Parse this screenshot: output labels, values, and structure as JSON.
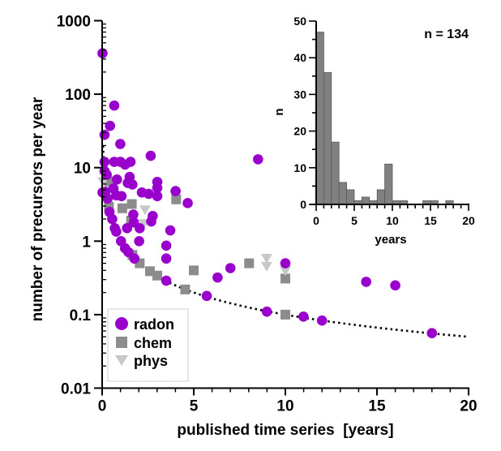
{
  "chart_data": [
    {
      "type": "scatter",
      "xlabel": "published time series  [years]",
      "ylabel": "number of precursors per year",
      "xlim": [
        0,
        20
      ],
      "ylim": [
        0.01,
        1000
      ],
      "yscale": "log",
      "xticks": [
        0,
        5,
        10,
        15,
        20
      ],
      "xtick_labels": [
        "0",
        "5",
        "10",
        "15",
        "20"
      ],
      "yticks": [
        0.01,
        0.1,
        1,
        10,
        100,
        1000
      ],
      "ytick_labels": [
        "0.01",
        "0.1",
        "1",
        "10",
        "100",
        "1000"
      ],
      "grid": false,
      "legend": {
        "placement": "bottom-left",
        "entries": [
          {
            "name": "radon",
            "marker": "circle",
            "color": "#9900cc"
          },
          {
            "name": "chem",
            "marker": "square",
            "color": "#8c8c8c"
          },
          {
            "name": "phys",
            "marker": "triangle-down",
            "color": "#c8c8c8"
          }
        ]
      },
      "curve": {
        "name": "1/x",
        "style": "dotted",
        "formula": "y = 1/x"
      },
      "series": [
        {
          "name": "radon",
          "points": [
            [
              0.02,
              360
            ],
            [
              0.66,
              70
            ],
            [
              0.43,
              37
            ],
            [
              0.13,
              28
            ],
            [
              0.99,
              21
            ],
            [
              0.13,
              12
            ],
            [
              0.66,
              12
            ],
            [
              1.0,
              12
            ],
            [
              1.25,
              11
            ],
            [
              1.55,
              12
            ],
            [
              2.65,
              14.5
            ],
            [
              0.13,
              9
            ],
            [
              0.25,
              8
            ],
            [
              0.81,
              6.9
            ],
            [
              1.5,
              7.5
            ],
            [
              1.4,
              6.2
            ],
            [
              1.65,
              5.9
            ],
            [
              0.02,
              4.6
            ],
            [
              0.18,
              4.7
            ],
            [
              0.62,
              5.2
            ],
            [
              0.77,
              4.2
            ],
            [
              1.06,
              4.1
            ],
            [
              2.17,
              4.6
            ],
            [
              2.54,
              4.4
            ],
            [
              3.01,
              6.4
            ],
            [
              3.01,
              5.3
            ],
            [
              3.01,
              4.1
            ],
            [
              4.01,
              4.8
            ],
            [
              4.67,
              3.3
            ],
            [
              0.4,
              2.5
            ],
            [
              0.55,
              2.0
            ],
            [
              1.7,
              2.3
            ],
            [
              2.76,
              2.2
            ],
            [
              2.68,
              1.85
            ],
            [
              1.73,
              1.8
            ],
            [
              0.69,
              1.5
            ],
            [
              0.77,
              1.35
            ],
            [
              1.36,
              1.5
            ],
            [
              2.05,
              1.5
            ],
            [
              3.72,
              1.4
            ],
            [
              1.03,
              1.0
            ],
            [
              2.02,
              1.0
            ],
            [
              3.5,
              0.87
            ],
            [
              1.25,
              0.8
            ],
            [
              1.43,
              0.71
            ],
            [
              1.76,
              0.58
            ],
            [
              3.5,
              0.58
            ],
            [
              3.5,
              0.29
            ],
            [
              5.71,
              0.18
            ],
            [
              8.51,
              13
            ],
            [
              6.3,
              0.32
            ],
            [
              7.0,
              0.43
            ],
            [
              10.0,
              0.5
            ],
            [
              8.99,
              0.11
            ],
            [
              10.99,
              0.094
            ],
            [
              12.0,
              0.083
            ],
            [
              14.41,
              0.28
            ],
            [
              16.0,
              0.25
            ],
            [
              18.0,
              0.056
            ],
            [
              0.3,
              3.8
            ]
          ]
        },
        {
          "name": "chem",
          "points": [
            [
              0.4,
              6.5
            ],
            [
              0.37,
              2.95
            ],
            [
              1.1,
              2.8
            ],
            [
              1.62,
              3.2
            ],
            [
              1.58,
              1.9
            ],
            [
              4.04,
              3.7
            ],
            [
              1.65,
              0.65
            ],
            [
              2.05,
              0.5
            ],
            [
              2.61,
              0.39
            ],
            [
              3.01,
              0.34
            ],
            [
              4.53,
              0.22
            ],
            [
              5.0,
              0.4
            ],
            [
              8.02,
              0.5
            ],
            [
              10.0,
              0.31
            ],
            [
              10.0,
              0.1
            ]
          ]
        },
        {
          "name": "phys",
          "points": [
            [
              0.05,
              6.5
            ],
            [
              2.34,
              2.7
            ],
            [
              2.28,
              1.75
            ],
            [
              8.98,
              0.59
            ],
            [
              8.98,
              0.46
            ],
            [
              10.0,
              0.4
            ]
          ]
        }
      ]
    },
    {
      "type": "bar",
      "title": "n = 134",
      "xlabel": "years",
      "ylabel": "n",
      "xlim": [
        0,
        20
      ],
      "ylim": [
        0,
        50
      ],
      "xticks": [
        0,
        5,
        10,
        15,
        20
      ],
      "xtick_labels": [
        "0",
        "5",
        "10",
        "15",
        "20"
      ],
      "yticks": [
        0,
        10,
        20,
        30,
        40,
        50
      ],
      "ytick_labels": [
        "0",
        "10",
        "20",
        "30",
        "40",
        "50"
      ],
      "bin_width": 1,
      "bin_edges_start": [
        0,
        1,
        2,
        3,
        4,
        5,
        6,
        7,
        8,
        9,
        10,
        11,
        12,
        13,
        14,
        15,
        16,
        17,
        18,
        19
      ],
      "values": [
        47,
        36,
        17,
        6,
        4,
        1,
        2,
        1,
        4,
        11,
        1,
        1,
        0,
        0,
        1,
        1,
        0,
        1,
        0,
        0
      ],
      "color": "#808080",
      "grid": false
    }
  ]
}
